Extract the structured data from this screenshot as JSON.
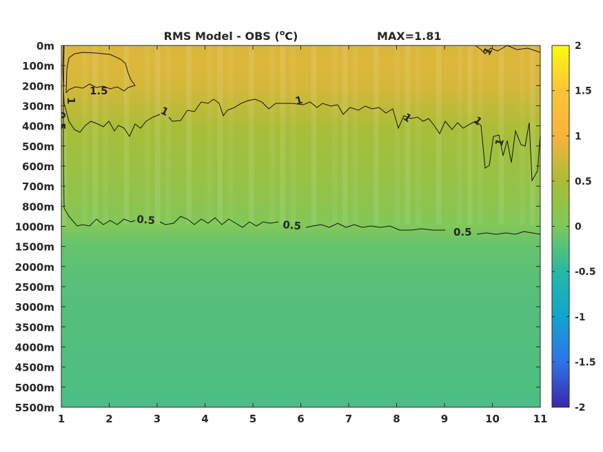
{
  "chart_data": {
    "type": "heatmap",
    "title": "RMS Model - OBS (",
    "title_unit_sup": "o",
    "title_unit_end": "C)",
    "max_label": "MAX=1.81",
    "x_ticks": [
      "1",
      "2",
      "3",
      "4",
      "5",
      "6",
      "7",
      "8",
      "9",
      "10",
      "11"
    ],
    "y_ticks": [
      "0m",
      "100m",
      "200m",
      "300m",
      "400m",
      "500m",
      "600m",
      "700m",
      "800m",
      "1000m",
      "1500m",
      "2000m",
      "2500m",
      "3000m",
      "3500m",
      "4000m",
      "4500m",
      "5000m",
      "5500m"
    ],
    "xlim": [
      1,
      11
    ],
    "colorbar": {
      "ticks": [
        "2",
        "1.5",
        "1",
        "0.5",
        "0",
        "-0.5",
        "-1",
        "-1.5",
        "-2"
      ],
      "range": [
        -2,
        2
      ],
      "colormap": "parula"
    },
    "contour_labels": [
      "1.5",
      "1",
      "1",
      "1",
      "1",
      "1",
      "1",
      "1",
      "0.5",
      "0.5",
      "0.5",
      "0.5"
    ],
    "field_rows": [
      {
        "depth": "0m",
        "value": 1.3
      },
      {
        "depth": "100m",
        "value": 1.32
      },
      {
        "depth": "200m",
        "value": 1.28
      },
      {
        "depth": "300m",
        "value": 1.15
      },
      {
        "depth": "400m",
        "value": 1.02
      },
      {
        "depth": "500m",
        "value": 0.92
      },
      {
        "depth": "600m",
        "value": 0.84
      },
      {
        "depth": "700m",
        "value": 0.76
      },
      {
        "depth": "800m",
        "value": 0.66
      },
      {
        "depth": "1000m",
        "value": 0.52
      },
      {
        "depth": "1500m",
        "value": 0.38
      },
      {
        "depth": "2000m",
        "value": 0.34
      },
      {
        "depth": "2500m",
        "value": 0.32
      },
      {
        "depth": "3000m",
        "value": 0.3
      },
      {
        "depth": "3500m",
        "value": 0.3
      },
      {
        "depth": "4000m",
        "value": 0.29
      },
      {
        "depth": "4500m",
        "value": 0.28
      },
      {
        "depth": "5000m",
        "value": 0.27
      },
      {
        "depth": "5500m",
        "value": 0.25
      }
    ]
  }
}
